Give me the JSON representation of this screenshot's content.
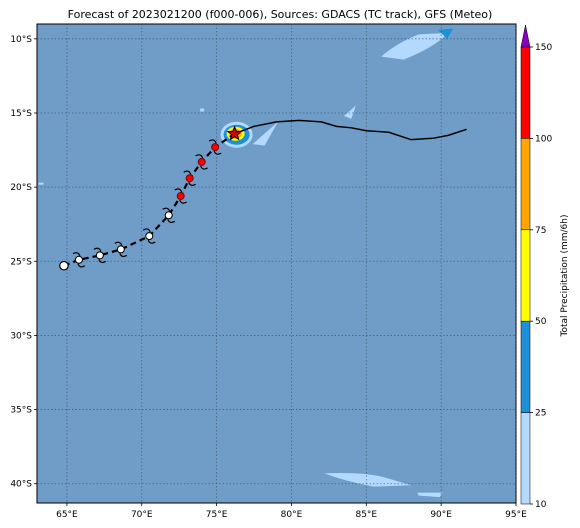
{
  "title": "Forecast of 2023021200 (f000-006), Sources: GDACS (TC track), GFS (Meteo)",
  "map": {
    "lon_range": [
      63,
      95
    ],
    "lat_range": [
      -41.3,
      -9
    ],
    "lon_ticks": [
      "65°E",
      "70°E",
      "75°E",
      "80°E",
      "85°E",
      "90°E",
      "95°E"
    ],
    "lat_ticks": [
      "10°S",
      "15°S",
      "20°S",
      "25°S",
      "30°S",
      "35°S",
      "40°S"
    ],
    "ocean_color": "#6f9dc8",
    "gridlines": "dotted"
  },
  "colorbar": {
    "label": "Total Precipitation (mm/6h)",
    "ticks": [
      "10",
      "25",
      "50",
      "75",
      "100",
      "150"
    ],
    "colors": [
      "#b3d9ff",
      "#1e90d8",
      "#ffff00",
      "#ffa500",
      "#ff0000",
      "#8a00c0"
    ]
  },
  "track": {
    "past_points": [
      {
        "lon": 64.8,
        "lat": -25.3
      },
      {
        "lon": 65.8,
        "lat": -24.9
      },
      {
        "lon": 67.2,
        "lat": -24.6
      },
      {
        "lon": 68.6,
        "lat": -24.2
      },
      {
        "lon": 70.5,
        "lat": -23.3
      },
      {
        "lon": 71.8,
        "lat": -21.9
      },
      {
        "lon": 72.6,
        "lat": -20.6
      },
      {
        "lon": 73.2,
        "lat": -19.4
      },
      {
        "lon": 74.0,
        "lat": -18.3
      },
      {
        "lon": 74.9,
        "lat": -17.3
      },
      {
        "lon": 76.2,
        "lat": -16.4
      }
    ],
    "current": {
      "lon": 76.2,
      "lat": -16.4
    },
    "forecast_points": [
      {
        "lon": 76.2,
        "lat": -16.4
      },
      {
        "lon": 77.5,
        "lat": -15.9
      },
      {
        "lon": 79.0,
        "lat": -15.6
      },
      {
        "lon": 80.5,
        "lat": -15.5
      },
      {
        "lon": 82.0,
        "lat": -15.6
      },
      {
        "lon": 83.0,
        "lat": -15.9
      },
      {
        "lon": 84.0,
        "lat": -16.0
      },
      {
        "lon": 85.0,
        "lat": -16.2
      },
      {
        "lon": 86.5,
        "lat": -16.3
      },
      {
        "lon": 88.0,
        "lat": -16.8
      },
      {
        "lon": 89.5,
        "lat": -16.7
      },
      {
        "lon": 90.5,
        "lat": -16.5
      },
      {
        "lon": 91.7,
        "lat": -16.1
      }
    ],
    "marker_colors": [
      "white",
      "white",
      "white",
      "white",
      "white",
      "white",
      "red",
      "red",
      "red",
      "red",
      "red"
    ]
  }
}
